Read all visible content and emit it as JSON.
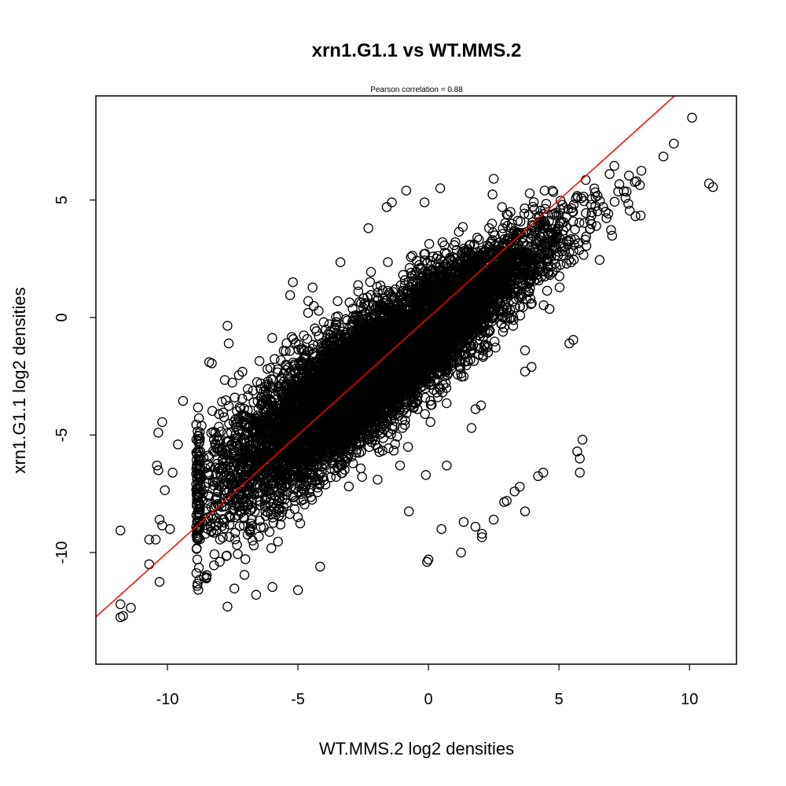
{
  "chart_data": {
    "type": "scatter",
    "title": "xrn1.G1.1 vs WT.MMS.2",
    "subtitle": "Pearson correlation =  0.88",
    "xlabel": "WT.MMS.2 log2 densities",
    "ylabel": "xrn1.G1.1 log2 densities",
    "xlim": [
      -12.74,
      11.8
    ],
    "ylim": [
      -14.75,
      9.43
    ],
    "x_ticks": [
      -10,
      -5,
      0,
      5,
      10
    ],
    "y_ticks": [
      -10,
      -5,
      0,
      5
    ],
    "x_tick_labels": [
      "-10",
      "-5",
      "0",
      "5",
      "10"
    ],
    "y_tick_labels": [
      "-10",
      "-5",
      "0",
      "5"
    ],
    "grid": false,
    "reference_line": {
      "slope": 1,
      "intercept": 0,
      "color": "#ff0000"
    },
    "point_color": "#000000",
    "dense_cloud": {
      "n": 9000,
      "x_mean": -1.8,
      "x_sd": 3.0,
      "x_min": -8.9,
      "x_max": 8.2,
      "slope": 0.8,
      "intercept": -0.6,
      "y_sd": 1.15,
      "seed": 7
    },
    "points": [
      [
        -11.8,
        -9.06
      ],
      [
        -11.8,
        -12.2
      ],
      [
        -11.7,
        -12.7
      ],
      [
        -11.4,
        -12.35
      ],
      [
        -11.8,
        -12.75
      ],
      [
        -10.7,
        -10.5
      ],
      [
        10.1,
        8.5
      ],
      [
        9.4,
        7.4
      ],
      [
        9.0,
        6.85
      ],
      [
        10.75,
        5.7
      ],
      [
        10.9,
        5.55
      ],
      [
        5.9,
        -5.2
      ],
      [
        5.7,
        -5.7
      ],
      [
        5.8,
        -6.0
      ],
      [
        5.8,
        -6.6
      ],
      [
        4.4,
        -6.6
      ],
      [
        4.2,
        -6.75
      ],
      [
        3.7,
        -8.25
      ],
      [
        3.3,
        -7.4
      ],
      [
        3.5,
        -7.2
      ],
      [
        3.0,
        -7.8
      ],
      [
        2.9,
        -7.85
      ],
      [
        2.5,
        -8.6
      ],
      [
        2.05,
        -9.2
      ],
      [
        2.05,
        -9.35
      ],
      [
        1.8,
        -8.9
      ],
      [
        1.35,
        -8.7
      ],
      [
        1.25,
        -10.0
      ],
      [
        0.0,
        -10.3
      ],
      [
        -0.05,
        -10.4
      ],
      [
        0.5,
        -9.0
      ],
      [
        -0.1,
        -6.7
      ],
      [
        0.7,
        -6.3
      ],
      [
        -0.75,
        -8.25
      ],
      [
        -5.0,
        -11.6
      ],
      [
        -6.6,
        -11.8
      ],
      [
        -7.7,
        -12.3
      ],
      [
        -7.05,
        -10.95
      ],
      [
        -4.15,
        -10.6
      ],
      [
        2.5,
        5.9
      ],
      [
        0.45,
        5.5
      ],
      [
        -0.85,
        5.4
      ],
      [
        -0.15,
        4.9
      ],
      [
        5.55,
        -0.95
      ],
      [
        5.4,
        -1.1
      ],
      [
        3.7,
        -1.4
      ],
      [
        3.7,
        -2.3
      ],
      [
        3.95,
        -2.1
      ],
      [
        1.8,
        -3.9
      ],
      [
        1.65,
        -4.7
      ],
      [
        -7.7,
        -0.35
      ],
      [
        -7.65,
        -1.1
      ],
      [
        -8.4,
        -1.9
      ],
      [
        -8.3,
        -1.95
      ],
      [
        -10.2,
        -4.45
      ],
      [
        -10.35,
        -4.9
      ],
      [
        -10.1,
        -7.35
      ],
      [
        -10.3,
        -8.6
      ],
      [
        -10.2,
        -8.85
      ],
      [
        -10.3,
        -11.25
      ],
      [
        -10.45,
        -9.45
      ],
      [
        -1.6,
        4.7
      ],
      [
        -1.4,
        4.9
      ],
      [
        -2.3,
        3.8
      ],
      [
        -5.3,
        0.95
      ],
      [
        4.45,
        5.4
      ],
      [
        4.75,
        5.4
      ],
      [
        -10.4,
        -6.3
      ],
      [
        -10.35,
        -6.5
      ],
      [
        -9.6,
        -5.4
      ],
      [
        -9.4,
        -3.55
      ],
      [
        -9.8,
        -6.6
      ],
      [
        -9.9,
        -9.0
      ],
      [
        -10.7,
        -9.45
      ]
    ]
  }
}
